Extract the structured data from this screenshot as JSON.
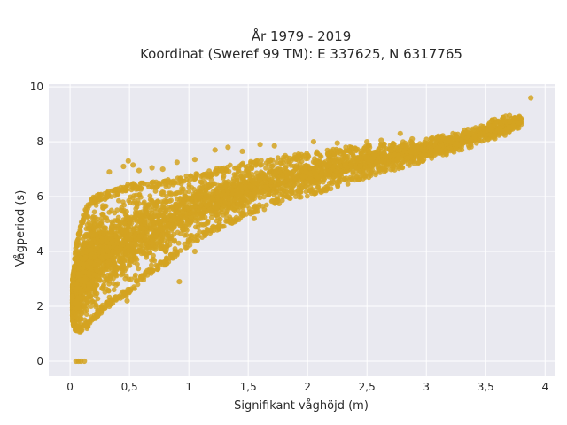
{
  "chart_data": {
    "type": "scatter",
    "title_line1": "År 1979 - 2019",
    "title_line2": "Koordinat (Sweref 99 TM): E 337625, N 6317765",
    "xlabel": "Signifikant våghöjd (m)",
    "ylabel": "Vågperiod (s)",
    "xlim": [
      -0.18,
      4.08
    ],
    "ylim": [
      -0.55,
      10.1
    ],
    "x_ticks": [
      0,
      0.5,
      1,
      1.5,
      2,
      2.5,
      3,
      3.5,
      4
    ],
    "x_tick_labels": [
      "0",
      "0,5",
      "1",
      "1,5",
      "2",
      "2,5",
      "3",
      "3,5",
      "4"
    ],
    "y_ticks": [
      0,
      2,
      4,
      6,
      8,
      10
    ],
    "y_tick_labels": [
      "0",
      "2",
      "4",
      "6",
      "8",
      "10"
    ],
    "grid": true,
    "legend": "none",
    "colors": {
      "marker": "#D4A321",
      "plot_background": "#E9E9F0",
      "grid": "#FFFFFF"
    },
    "envelope": [
      {
        "x": 0.02,
        "y_low": 1.3,
        "y_high": 3.0
      },
      {
        "x": 0.05,
        "y_low": 1.05,
        "y_high": 4.3
      },
      {
        "x": 0.1,
        "y_low": 1.05,
        "y_high": 5.2
      },
      {
        "x": 0.15,
        "y_low": 1.2,
        "y_high": 5.8
      },
      {
        "x": 0.2,
        "y_low": 1.5,
        "y_high": 6.0
      },
      {
        "x": 0.3,
        "y_low": 1.9,
        "y_high": 6.2
      },
      {
        "x": 0.4,
        "y_low": 2.2,
        "y_high": 6.3
      },
      {
        "x": 0.5,
        "y_low": 2.4,
        "y_high": 6.5
      },
      {
        "x": 0.6,
        "y_low": 2.9,
        "y_high": 6.5
      },
      {
        "x": 0.8,
        "y_low": 3.5,
        "y_high": 6.6
      },
      {
        "x": 1.0,
        "y_low": 4.2,
        "y_high": 6.8
      },
      {
        "x": 1.2,
        "y_low": 4.7,
        "y_high": 7.0
      },
      {
        "x": 1.5,
        "y_low": 5.3,
        "y_high": 7.3
      },
      {
        "x": 1.8,
        "y_low": 5.8,
        "y_high": 7.5
      },
      {
        "x": 2.0,
        "y_low": 6.0,
        "y_high": 7.6
      },
      {
        "x": 2.3,
        "y_low": 6.4,
        "y_high": 7.8
      },
      {
        "x": 2.6,
        "y_low": 6.8,
        "y_high": 7.9
      },
      {
        "x": 3.0,
        "y_low": 7.3,
        "y_high": 8.1
      },
      {
        "x": 3.3,
        "y_low": 7.7,
        "y_high": 8.4
      },
      {
        "x": 3.6,
        "y_low": 8.1,
        "y_high": 8.9
      },
      {
        "x": 3.8,
        "y_low": 8.5,
        "y_high": 9.0
      }
    ],
    "outliers": [
      {
        "x": 0.05,
        "y": 0.0
      },
      {
        "x": 0.07,
        "y": 0.0
      },
      {
        "x": 0.09,
        "y": 0.0
      },
      {
        "x": 0.12,
        "y": 0.0
      },
      {
        "x": 0.33,
        "y": 6.9
      },
      {
        "x": 0.45,
        "y": 7.1
      },
      {
        "x": 0.49,
        "y": 7.3
      },
      {
        "x": 0.53,
        "y": 7.15
      },
      {
        "x": 0.58,
        "y": 6.95
      },
      {
        "x": 0.69,
        "y": 7.05
      },
      {
        "x": 0.78,
        "y": 7.0
      },
      {
        "x": 0.9,
        "y": 7.25
      },
      {
        "x": 1.05,
        "y": 7.35
      },
      {
        "x": 1.22,
        "y": 7.7
      },
      {
        "x": 1.33,
        "y": 7.8
      },
      {
        "x": 1.45,
        "y": 7.65
      },
      {
        "x": 1.6,
        "y": 7.9
      },
      {
        "x": 1.72,
        "y": 7.85
      },
      {
        "x": 2.05,
        "y": 8.0
      },
      {
        "x": 2.25,
        "y": 7.95
      },
      {
        "x": 2.5,
        "y": 8.0
      },
      {
        "x": 2.62,
        "y": 8.05
      },
      {
        "x": 2.78,
        "y": 8.3
      },
      {
        "x": 2.88,
        "y": 8.1
      },
      {
        "x": 3.1,
        "y": 8.2
      },
      {
        "x": 3.22,
        "y": 8.05
      },
      {
        "x": 3.48,
        "y": 8.55
      },
      {
        "x": 3.5,
        "y": 8.4
      },
      {
        "x": 3.65,
        "y": 8.75
      },
      {
        "x": 3.7,
        "y": 8.95
      },
      {
        "x": 3.88,
        "y": 9.6
      },
      {
        "x": 3.55,
        "y": 8.2
      },
      {
        "x": 3.62,
        "y": 8.5
      },
      {
        "x": 0.92,
        "y": 2.9
      },
      {
        "x": 0.65,
        "y": 3.3
      },
      {
        "x": 0.48,
        "y": 2.2
      },
      {
        "x": 1.05,
        "y": 4.0
      },
      {
        "x": 1.55,
        "y": 5.2
      },
      {
        "x": 0.4,
        "y": 2.3
      },
      {
        "x": 2.9,
        "y": 7.2
      }
    ]
  }
}
